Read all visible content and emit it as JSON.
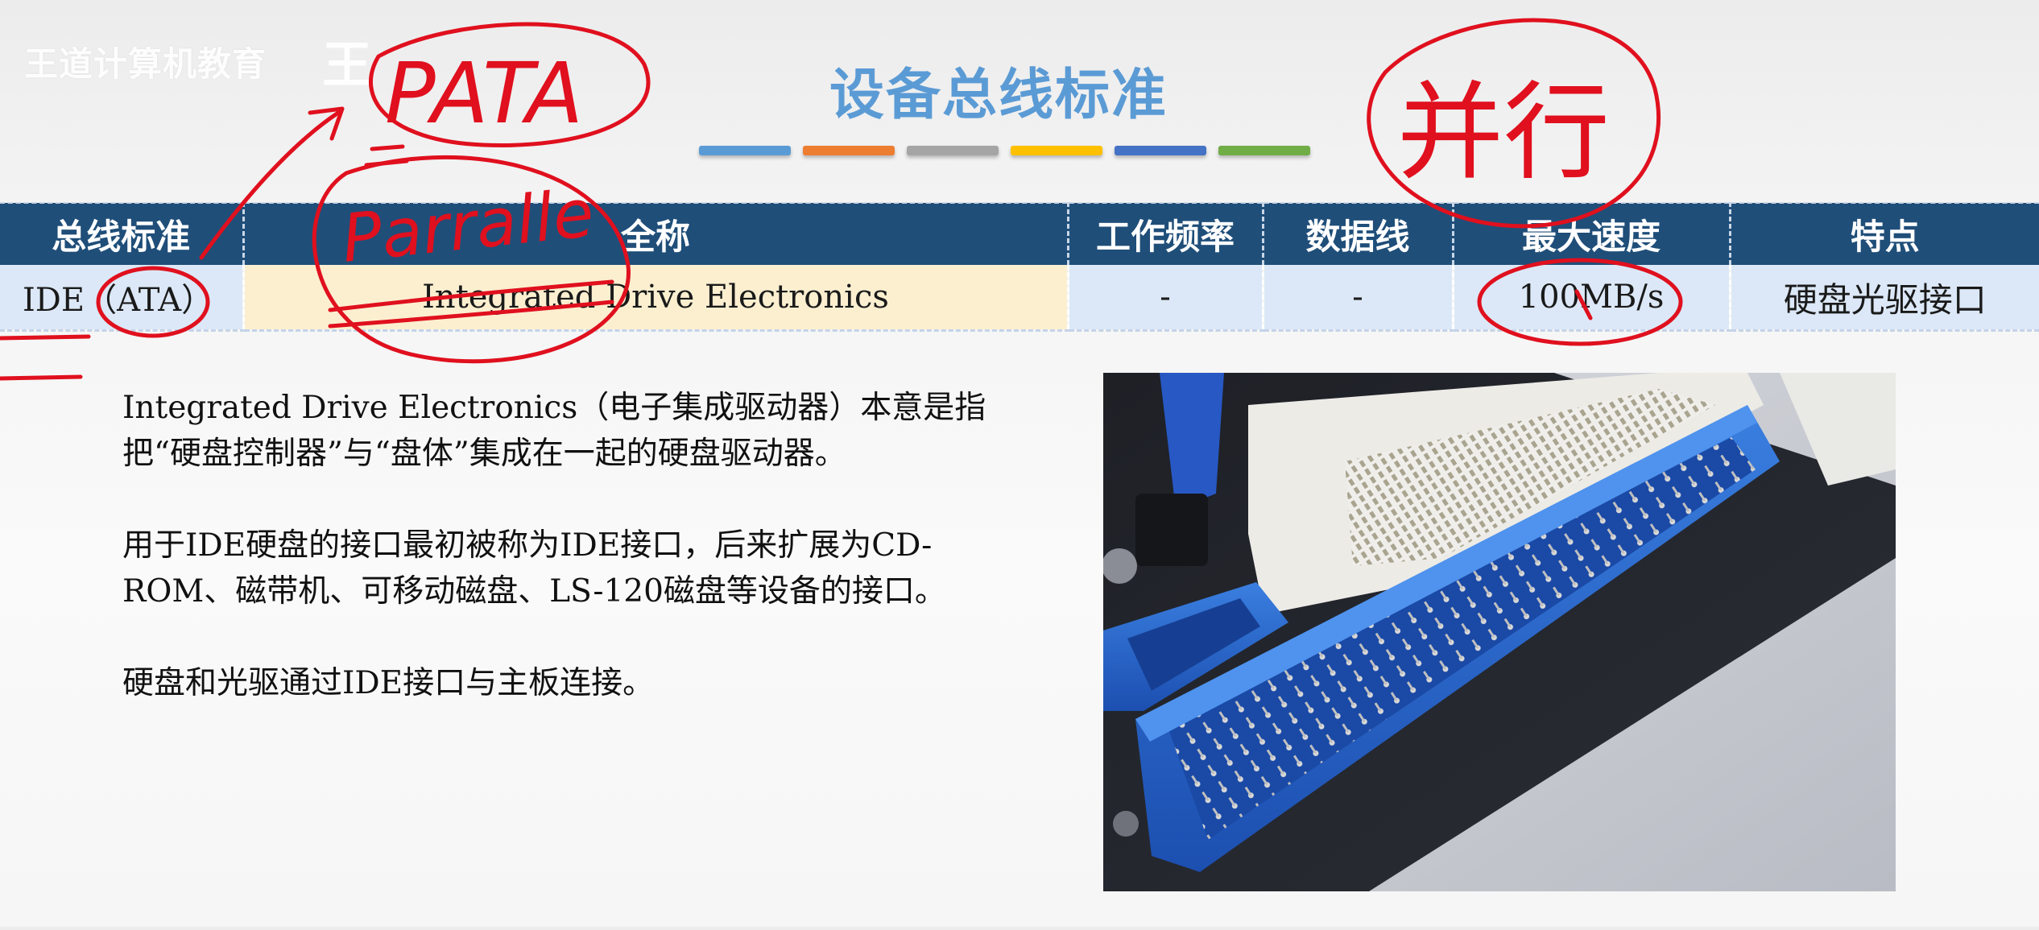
{
  "watermark": {
    "text": "王道计算机教育",
    "glyph": "王"
  },
  "slide": {
    "title": "设备总线标准",
    "accent_colors": [
      "#5b9bd5",
      "#ed7d31",
      "#a5a5a5",
      "#ffc000",
      "#4472c4",
      "#70ad47"
    ]
  },
  "table": {
    "headers": [
      "总线标准",
      "全称",
      "工作频率",
      "数据线",
      "最大速度",
      "特点"
    ],
    "rows": [
      [
        "IDE（ATA）",
        "Integrated Drive Electronics",
        "-",
        "-",
        "100MB/s",
        "硬盘光驱接口"
      ]
    ],
    "header_color": "#1f4e79",
    "row_color": "#dce8f7",
    "highlight_cell_color": "#fbefd0"
  },
  "description": {
    "paragraph_1": "Integrated Drive Electronics（电子集成驱动器）本意是指把“硬盘控制器”与“盘体”集成在一起的硬盘驱动器。",
    "paragraph_2": "用于IDE硬盘的接口最初被称为IDE接口，后来扩展为CD-ROM、磁带机、可移动磁盘、LS-120磁盘等设备的接口。",
    "paragraph_3": "硬盘和光驱通过IDE接口与主板连接。"
  },
  "annotations": {
    "ink_color": "#e0101e",
    "pata": "PATA",
    "parallel": "Parralle",
    "serial_parallel": "并行"
  }
}
